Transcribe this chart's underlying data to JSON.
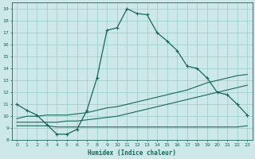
{
  "xlabel": "Humidex (Indice chaleur)",
  "bg_color": "#cce8e8",
  "grid_color": "#99cccc",
  "line_color": "#1a6655",
  "xlim": [
    -0.5,
    23.5
  ],
  "ylim": [
    8.0,
    19.5
  ],
  "xticks": [
    0,
    1,
    2,
    3,
    4,
    5,
    6,
    7,
    8,
    9,
    10,
    11,
    12,
    13,
    14,
    15,
    16,
    17,
    18,
    19,
    20,
    21,
    22,
    23
  ],
  "yticks": [
    8,
    9,
    10,
    11,
    12,
    13,
    14,
    15,
    16,
    17,
    18,
    19
  ],
  "curve1_x": [
    0,
    1,
    2,
    3,
    4,
    5,
    6,
    7,
    8,
    9,
    10,
    11,
    12,
    13,
    14,
    15,
    16,
    17,
    18,
    19,
    20,
    21,
    22,
    23
  ],
  "curve1_y": [
    11.0,
    10.5,
    10.1,
    9.3,
    8.5,
    8.5,
    8.9,
    10.5,
    13.2,
    17.2,
    17.4,
    19.0,
    18.6,
    18.5,
    17.0,
    16.3,
    15.5,
    14.2,
    14.0,
    13.2,
    12.0,
    11.8,
    11.0,
    10.1
  ],
  "curve2_x": [
    0,
    2,
    3,
    4,
    5,
    6,
    7,
    8,
    9,
    10,
    11,
    12,
    13,
    14,
    15,
    16,
    17,
    18,
    19,
    20,
    21,
    22,
    23
  ],
  "curve2_y": [
    9.2,
    9.2,
    9.2,
    9.1,
    9.1,
    9.1,
    9.1,
    9.1,
    9.1,
    9.1,
    9.1,
    9.1,
    9.1,
    9.1,
    9.1,
    9.1,
    9.1,
    9.1,
    9.1,
    9.1,
    9.1,
    9.1,
    9.2
  ],
  "curve3_x": [
    0,
    1,
    2,
    3,
    4,
    5,
    6,
    7,
    8,
    9,
    10,
    11,
    12,
    13,
    14,
    15,
    16,
    17,
    18,
    19,
    20,
    21,
    22,
    23
  ],
  "curve3_y": [
    9.5,
    9.5,
    9.5,
    9.5,
    9.5,
    9.6,
    9.6,
    9.7,
    9.8,
    9.9,
    10.0,
    10.2,
    10.4,
    10.6,
    10.8,
    11.0,
    11.2,
    11.4,
    11.6,
    11.8,
    12.0,
    12.2,
    12.4,
    12.6
  ],
  "curve4_x": [
    0,
    1,
    2,
    3,
    4,
    5,
    6,
    7,
    8,
    9,
    10,
    11,
    12,
    13,
    14,
    15,
    16,
    17,
    18,
    19,
    20,
    21,
    22,
    23
  ],
  "curve4_y": [
    9.8,
    10.0,
    10.0,
    10.1,
    10.1,
    10.1,
    10.2,
    10.3,
    10.5,
    10.7,
    10.8,
    11.0,
    11.2,
    11.4,
    11.6,
    11.8,
    12.0,
    12.2,
    12.5,
    12.8,
    13.0,
    13.2,
    13.4,
    13.5
  ]
}
